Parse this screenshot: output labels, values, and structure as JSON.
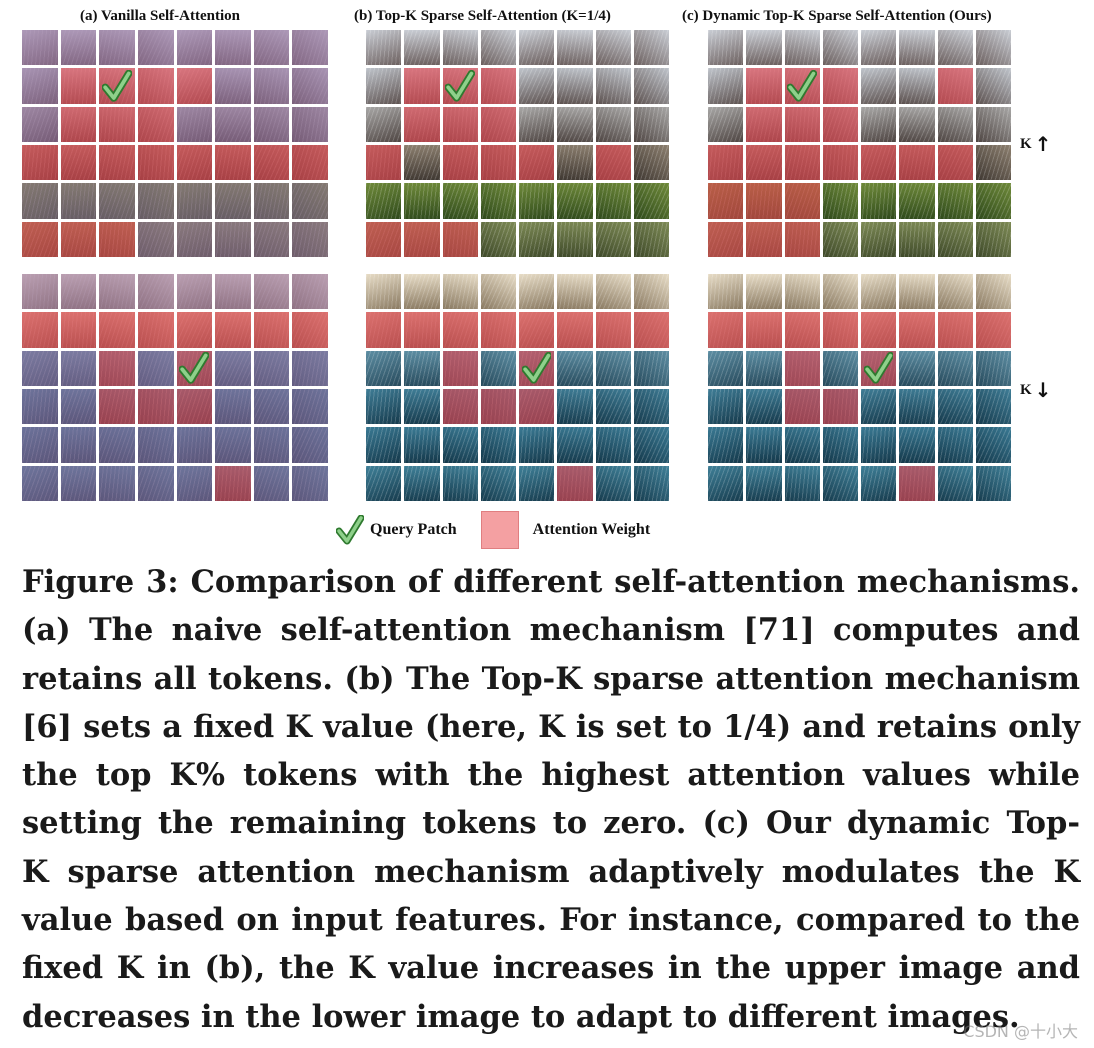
{
  "figure": {
    "panels": [
      {
        "id": "a",
        "title": "(a) Vanilla Self-Attention",
        "mode": "vanilla"
      },
      {
        "id": "b",
        "title": "(b) Top-K Sparse Self-Attention (K=1/4)",
        "mode": "topk"
      },
      {
        "id": "c",
        "title": "(c) Dynamic Top-K Sparse Self-Attention  (Ours)",
        "mode": "dynamic"
      }
    ],
    "rows": [
      {
        "scene": "park-trees",
        "k_indicator": {
          "label": "K",
          "arrow": "↑"
        },
        "query_patch": {
          "row": 1,
          "col": 2
        },
        "attention_vanilla": [
          [
            1,
            1,
            1,
            1,
            1,
            1,
            1,
            1
          ],
          [
            1,
            2,
            2,
            2,
            2,
            1,
            1,
            1
          ],
          [
            1,
            2,
            2,
            2,
            1,
            1,
            1,
            1
          ],
          [
            2,
            2,
            2,
            2,
            2,
            2,
            2,
            2
          ],
          [
            1,
            1,
            1,
            1,
            1,
            1,
            1,
            1
          ],
          [
            2,
            2,
            2,
            1,
            1,
            1,
            1,
            1
          ]
        ],
        "attention_topk": [
          [
            0,
            0,
            0,
            0,
            0,
            0,
            0,
            0
          ],
          [
            0,
            1,
            1,
            1,
            0,
            0,
            0,
            0
          ],
          [
            0,
            1,
            1,
            1,
            0,
            0,
            0,
            0
          ],
          [
            1,
            0,
            1,
            1,
            1,
            0,
            1,
            0
          ],
          [
            0,
            0,
            0,
            0,
            0,
            0,
            0,
            0
          ],
          [
            1,
            1,
            1,
            0,
            0,
            0,
            0,
            0
          ]
        ],
        "attention_dynamic": [
          [
            0,
            0,
            0,
            0,
            0,
            0,
            0,
            0
          ],
          [
            0,
            1,
            1,
            1,
            0,
            0,
            1,
            0
          ],
          [
            0,
            1,
            1,
            1,
            0,
            0,
            0,
            0
          ],
          [
            1,
            1,
            1,
            1,
            1,
            1,
            1,
            0
          ],
          [
            1,
            1,
            1,
            0,
            0,
            0,
            0,
            0
          ],
          [
            1,
            1,
            1,
            0,
            0,
            0,
            0,
            0
          ]
        ]
      },
      {
        "scene": "venice-canal",
        "k_indicator": {
          "label": "K",
          "arrow": "↓"
        },
        "query_patch": {
          "row": 2,
          "col": 4
        },
        "attention_vanilla": [
          [
            1,
            1,
            1,
            1,
            1,
            1,
            1,
            1
          ],
          [
            2,
            2,
            2,
            2,
            2,
            2,
            2,
            2
          ],
          [
            1,
            1,
            2,
            1,
            2,
            1,
            1,
            1
          ],
          [
            1,
            1,
            2,
            2,
            2,
            1,
            1,
            1
          ],
          [
            1,
            1,
            1,
            1,
            1,
            1,
            1,
            1
          ],
          [
            1,
            1,
            1,
            1,
            1,
            2,
            1,
            1
          ]
        ],
        "attention_topk": [
          [
            0,
            0,
            0,
            0,
            0,
            0,
            0,
            0
          ],
          [
            1,
            1,
            1,
            1,
            1,
            1,
            1,
            1
          ],
          [
            0,
            0,
            1,
            0,
            1,
            0,
            0,
            0
          ],
          [
            0,
            0,
            1,
            1,
            1,
            0,
            0,
            0
          ],
          [
            0,
            0,
            0,
            0,
            0,
            0,
            0,
            0
          ],
          [
            0,
            0,
            0,
            0,
            0,
            1,
            0,
            0
          ]
        ],
        "attention_dynamic": [
          [
            0,
            0,
            0,
            0,
            0,
            0,
            0,
            0
          ],
          [
            1,
            1,
            1,
            1,
            1,
            1,
            1,
            1
          ],
          [
            0,
            0,
            1,
            0,
            1,
            0,
            0,
            0
          ],
          [
            0,
            0,
            1,
            1,
            0,
            0,
            0,
            0
          ],
          [
            0,
            0,
            0,
            0,
            0,
            0,
            0,
            0
          ],
          [
            0,
            0,
            0,
            0,
            0,
            1,
            0,
            0
          ]
        ]
      }
    ],
    "colors": {
      "attention": "#e8555a",
      "vanilla_wash": "#9a7fa2",
      "legend_swatch": "#f4a0a2",
      "check": "#3a9a3a"
    },
    "legend": {
      "query_label": "Query Patch",
      "attention_label": "Attention Weight",
      "query_icon": "check-mark-icon"
    }
  },
  "caption": {
    "lines": [
      "Figure 3: Comparison of different self-attention mechanisms.",
      "(a) The naive self-attention mechanism [71] computes and",
      "retains all tokens. (b) The Top-K sparse attention mechanism",
      "[6] sets a fixed K value (here, K is set to 1/4) and retains only",
      "the top K% tokens with the highest attention values while",
      "setting the remaining tokens to zero. (c) Our dynamic Top-",
      "K sparse attention mechanism adaptively modulates the K",
      "value based on input features. For instance, compared to the",
      "fixed K in (b), the K value increases in the upper image and",
      "decreases in the lower image to adapt to different images."
    ]
  },
  "watermark": "CSDN @十小大"
}
